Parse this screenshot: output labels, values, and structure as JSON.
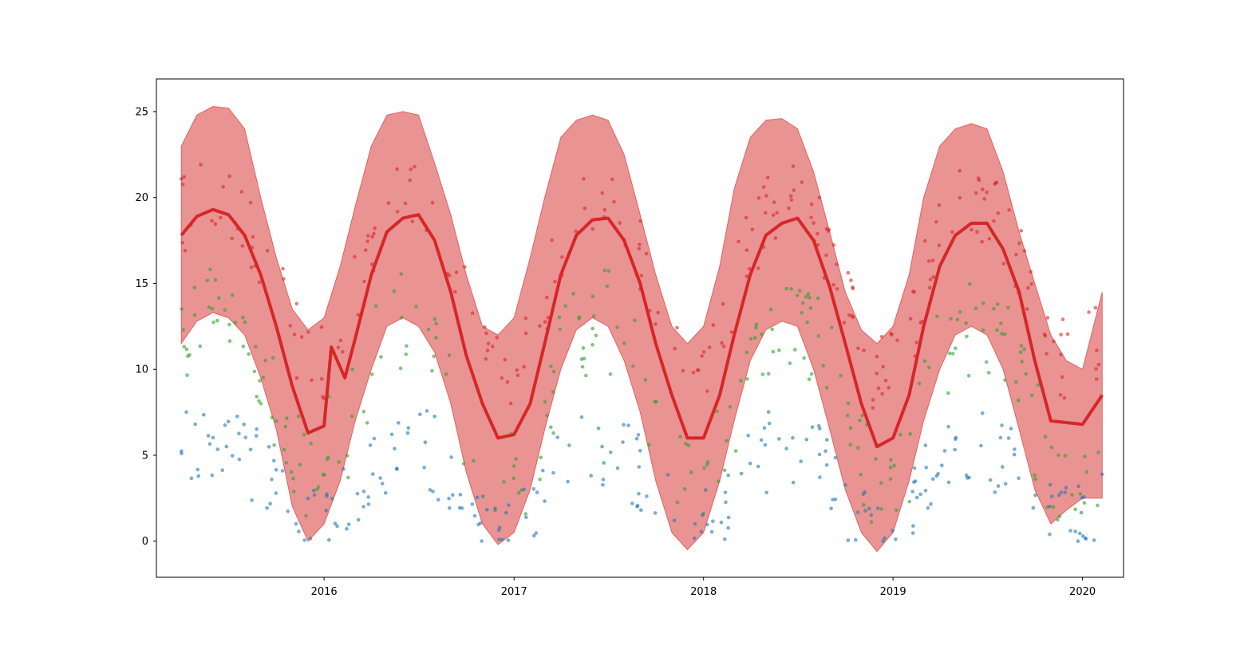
{
  "chart_data": {
    "type": "line",
    "title": "",
    "xlabel": "",
    "ylabel": "",
    "x_is_date": true,
    "xlim": [
      "2015-02-12",
      "2020-03-20"
    ],
    "ylim": [
      -2.1,
      26.9
    ],
    "grid": false,
    "x_ticks": [
      {
        "date": "2016-01-01",
        "label": "2016"
      },
      {
        "date": "2017-01-01",
        "label": "2017"
      },
      {
        "date": "2018-01-01",
        "label": "2018"
      },
      {
        "date": "2019-01-01",
        "label": "2019"
      },
      {
        "date": "2020-01-01",
        "label": "2020"
      }
    ],
    "y_ticks": [
      0,
      5,
      10,
      15,
      20,
      25
    ],
    "colors": {
      "mean_line": "#d62728",
      "band": "#d62728",
      "max_points": "#d62728",
      "mid_points": "#2ca02c",
      "min_points": "#1f77b4"
    },
    "series": [
      {
        "kind": "line",
        "x": [
          "2015-04-01",
          "2015-05-01",
          "2015-06-01",
          "2015-07-01",
          "2015-08-01",
          "2015-09-01",
          "2015-10-01",
          "2015-11-01",
          "2015-12-01",
          "2016-01-01",
          "2016-01-15",
          "2016-02-10",
          "2016-03-01",
          "2016-04-01",
          "2016-05-01",
          "2016-06-01",
          "2016-07-01",
          "2016-08-01",
          "2016-09-01",
          "2016-10-01",
          "2016-11-01",
          "2016-12-01",
          "2017-01-01",
          "2017-02-01",
          "2017-03-01",
          "2017-04-01",
          "2017-05-01",
          "2017-06-01",
          "2017-07-01",
          "2017-08-01",
          "2017-09-01",
          "2017-10-01",
          "2017-11-01",
          "2017-12-01",
          "2018-01-01",
          "2018-02-01",
          "2018-03-01",
          "2018-04-01",
          "2018-05-01",
          "2018-06-01",
          "2018-07-01",
          "2018-08-01",
          "2018-09-01",
          "2018-10-01",
          "2018-11-01",
          "2018-12-01",
          "2019-01-01",
          "2019-02-01",
          "2019-03-01",
          "2019-04-01",
          "2019-05-01",
          "2019-06-01",
          "2019-07-01",
          "2019-08-01",
          "2019-09-01",
          "2019-10-01",
          "2019-11-01",
          "2019-12-01",
          "2020-01-01",
          "2020-02-08"
        ],
        "y": [
          17.8,
          18.9,
          19.3,
          19.0,
          17.8,
          15.5,
          12.5,
          9.0,
          6.3,
          6.7,
          11.3,
          9.5,
          11.8,
          15.5,
          18.0,
          18.8,
          19.0,
          17.5,
          14.5,
          10.8,
          8.0,
          6.0,
          6.2,
          8.0,
          11.5,
          15.5,
          17.8,
          18.7,
          18.8,
          17.5,
          15.0,
          11.5,
          8.5,
          6.0,
          6.0,
          8.5,
          12.0,
          15.5,
          17.8,
          18.5,
          18.8,
          17.5,
          14.8,
          11.5,
          8.0,
          5.5,
          6.0,
          8.5,
          12.5,
          16.0,
          17.8,
          18.5,
          18.5,
          17.0,
          14.5,
          10.5,
          7.0,
          6.9,
          6.8,
          8.5
        ]
      },
      {
        "kind": "band",
        "x": [
          "2015-04-01",
          "2015-05-01",
          "2015-06-01",
          "2015-07-01",
          "2015-08-01",
          "2015-09-01",
          "2015-10-01",
          "2015-11-01",
          "2015-12-01",
          "2016-01-01",
          "2016-02-01",
          "2016-03-01",
          "2016-04-01",
          "2016-05-01",
          "2016-06-01",
          "2016-07-01",
          "2016-08-01",
          "2016-09-01",
          "2016-10-01",
          "2016-11-01",
          "2016-12-01",
          "2017-01-01",
          "2017-02-01",
          "2017-03-01",
          "2017-04-01",
          "2017-05-01",
          "2017-06-01",
          "2017-07-01",
          "2017-08-01",
          "2017-09-01",
          "2017-10-01",
          "2017-11-01",
          "2017-12-01",
          "2018-01-01",
          "2018-02-01",
          "2018-03-01",
          "2018-04-01",
          "2018-05-01",
          "2018-06-01",
          "2018-07-01",
          "2018-08-01",
          "2018-09-01",
          "2018-10-01",
          "2018-11-01",
          "2018-12-01",
          "2019-01-01",
          "2019-02-01",
          "2019-03-01",
          "2019-04-01",
          "2019-05-01",
          "2019-06-01",
          "2019-07-01",
          "2019-08-01",
          "2019-09-01",
          "2019-10-01",
          "2019-11-01",
          "2019-12-01",
          "2020-01-01",
          "2020-02-08"
        ],
        "y_low": [
          11.5,
          12.8,
          13.3,
          13.0,
          12.0,
          9.5,
          6.5,
          2.0,
          0.0,
          1.0,
          3.5,
          7.0,
          10.0,
          12.5,
          13.0,
          12.5,
          11.0,
          8.0,
          4.0,
          1.0,
          -0.2,
          0.5,
          3.0,
          6.5,
          10.0,
          12.3,
          13.0,
          12.5,
          10.5,
          7.5,
          3.5,
          0.5,
          -0.5,
          0.5,
          3.5,
          7.0,
          10.5,
          12.3,
          12.8,
          12.5,
          10.0,
          6.5,
          3.0,
          0.5,
          -0.6,
          0.5,
          3.5,
          7.0,
          10.0,
          12.0,
          12.5,
          12.0,
          10.0,
          6.5,
          3.0,
          1.0,
          1.8,
          2.5,
          2.5
        ],
        "y_high": [
          23.0,
          24.8,
          25.3,
          25.2,
          24.0,
          20.0,
          16.5,
          13.5,
          12.3,
          13.0,
          16.0,
          19.5,
          23.0,
          24.8,
          25.0,
          24.8,
          22.0,
          19.0,
          15.5,
          12.5,
          12.0,
          13.0,
          16.5,
          20.0,
          23.5,
          24.5,
          24.8,
          24.5,
          22.5,
          19.0,
          15.5,
          12.5,
          11.5,
          12.5,
          16.0,
          20.5,
          23.5,
          24.5,
          24.6,
          24.0,
          21.5,
          18.0,
          14.5,
          12.3,
          11.5,
          12.5,
          15.5,
          20.0,
          23.0,
          24.0,
          24.3,
          24.0,
          21.5,
          18.0,
          15.0,
          12.0,
          10.5,
          10.0,
          14.5
        ]
      },
      {
        "kind": "points",
        "role": "max",
        "amp": 5.2,
        "mid": 14.8,
        "noise": 2.4
      },
      {
        "kind": "points",
        "role": "mid",
        "amp": 5.0,
        "mid": 8.0,
        "noise": 3.0
      },
      {
        "kind": "points",
        "role": "min",
        "amp": 2.6,
        "mid": 3.0,
        "noise": 2.4
      }
    ]
  }
}
